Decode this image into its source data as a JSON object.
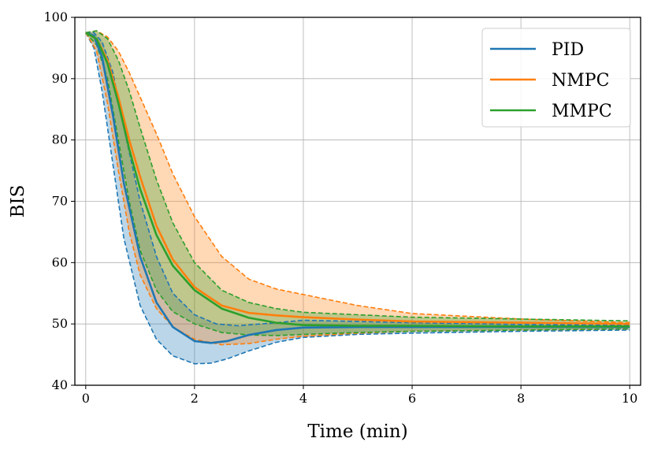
{
  "chart_data": {
    "type": "line",
    "xlabel": "Time (min)",
    "ylabel": "BIS",
    "xlim": [
      -0.2,
      10.2
    ],
    "ylim": [
      40,
      100
    ],
    "xticks": [
      0,
      2,
      4,
      6,
      8,
      10
    ],
    "yticks": [
      40,
      50,
      60,
      70,
      80,
      90,
      100
    ],
    "grid": true,
    "legend_position": "top-right",
    "series": [
      {
        "name": "PID",
        "color": "#1f77b4",
        "mean": [
          [
            0,
            97.5
          ],
          [
            0.15,
            97.0
          ],
          [
            0.3,
            93.5
          ],
          [
            0.5,
            84.0
          ],
          [
            0.7,
            73.0
          ],
          [
            1.0,
            61.0
          ],
          [
            1.3,
            53.5
          ],
          [
            1.6,
            49.5
          ],
          [
            2.0,
            47.2
          ],
          [
            2.3,
            46.9
          ],
          [
            2.6,
            47.2
          ],
          [
            3.0,
            48.2
          ],
          [
            3.5,
            49.0
          ],
          [
            4.0,
            49.4
          ],
          [
            5.0,
            49.5
          ],
          [
            6.0,
            49.5
          ],
          [
            8.0,
            49.5
          ],
          [
            10.0,
            49.5
          ]
        ],
        "upper": [
          [
            0,
            97.5
          ],
          [
            0.15,
            97.5
          ],
          [
            0.3,
            96.0
          ],
          [
            0.5,
            91.0
          ],
          [
            0.7,
            82.0
          ],
          [
            1.0,
            70.0
          ],
          [
            1.3,
            61.0
          ],
          [
            1.6,
            55.0
          ],
          [
            2.0,
            51.5
          ],
          [
            2.4,
            50.0
          ],
          [
            2.8,
            49.7
          ],
          [
            3.5,
            50.2
          ],
          [
            4.0,
            50.6
          ],
          [
            5.0,
            50.4
          ],
          [
            6.0,
            50.2
          ],
          [
            8.0,
            49.9
          ],
          [
            10.0,
            49.8
          ]
        ],
        "lower": [
          [
            0,
            97.5
          ],
          [
            0.15,
            95.0
          ],
          [
            0.3,
            88.0
          ],
          [
            0.5,
            76.0
          ],
          [
            0.7,
            64.0
          ],
          [
            1.0,
            53.0
          ],
          [
            1.3,
            47.5
          ],
          [
            1.6,
            44.8
          ],
          [
            2.0,
            43.5
          ],
          [
            2.3,
            43.6
          ],
          [
            2.6,
            44.3
          ],
          [
            3.0,
            45.6
          ],
          [
            3.5,
            47.0
          ],
          [
            4.0,
            47.8
          ],
          [
            5.0,
            48.3
          ],
          [
            6.0,
            48.5
          ],
          [
            8.0,
            48.8
          ],
          [
            10.0,
            49.0
          ]
        ]
      },
      {
        "name": "NMPC",
        "color": "#ff7f0e",
        "mean": [
          [
            0,
            97.5
          ],
          [
            0.2,
            96.5
          ],
          [
            0.4,
            93.0
          ],
          [
            0.6,
            87.0
          ],
          [
            0.8,
            80.0
          ],
          [
            1.0,
            74.0
          ],
          [
            1.3,
            66.0
          ],
          [
            1.6,
            60.5
          ],
          [
            2.0,
            56.0
          ],
          [
            2.5,
            53.0
          ],
          [
            3.0,
            51.8
          ],
          [
            3.5,
            51.4
          ],
          [
            4.0,
            51.1
          ],
          [
            5.0,
            50.7
          ],
          [
            6.0,
            50.4
          ],
          [
            8.0,
            50.2
          ],
          [
            10.0,
            50.0
          ]
        ],
        "upper": [
          [
            0,
            97.5
          ],
          [
            0.2,
            97.8
          ],
          [
            0.4,
            96.8
          ],
          [
            0.6,
            94.5
          ],
          [
            0.8,
            91.0
          ],
          [
            1.0,
            87.0
          ],
          [
            1.3,
            81.0
          ],
          [
            1.6,
            74.5
          ],
          [
            2.0,
            67.5
          ],
          [
            2.5,
            61.0
          ],
          [
            3.0,
            57.3
          ],
          [
            3.5,
            55.7
          ],
          [
            4.0,
            54.8
          ],
          [
            5.0,
            53.0
          ],
          [
            6.0,
            51.7
          ],
          [
            8.0,
            50.8
          ],
          [
            10.0,
            50.2
          ]
        ],
        "lower": [
          [
            0,
            97.5
          ],
          [
            0.2,
            94.5
          ],
          [
            0.4,
            86.0
          ],
          [
            0.6,
            75.0
          ],
          [
            0.8,
            65.0
          ],
          [
            1.0,
            58.0
          ],
          [
            1.3,
            52.5
          ],
          [
            1.6,
            49.5
          ],
          [
            2.0,
            47.5
          ],
          [
            2.5,
            46.6
          ],
          [
            3.0,
            46.8
          ],
          [
            3.5,
            47.5
          ],
          [
            4.0,
            48.0
          ],
          [
            5.0,
            48.5
          ],
          [
            6.0,
            48.8
          ],
          [
            8.0,
            49.0
          ],
          [
            10.0,
            49.2
          ]
        ]
      },
      {
        "name": "MMPC",
        "color": "#2ca02c",
        "mean": [
          [
            0,
            97.5
          ],
          [
            0.2,
            96.5
          ],
          [
            0.4,
            92.5
          ],
          [
            0.6,
            86.0
          ],
          [
            0.8,
            78.5
          ],
          [
            1.0,
            72.0
          ],
          [
            1.3,
            64.5
          ],
          [
            1.6,
            59.5
          ],
          [
            2.0,
            55.5
          ],
          [
            2.5,
            52.5
          ],
          [
            3.0,
            51.0
          ],
          [
            3.5,
            50.2
          ],
          [
            4.0,
            49.8
          ],
          [
            5.0,
            49.7
          ],
          [
            6.0,
            49.7
          ],
          [
            8.0,
            49.6
          ],
          [
            10.0,
            49.6
          ]
        ],
        "upper": [
          [
            0,
            97.5
          ],
          [
            0.2,
            97.8
          ],
          [
            0.4,
            96.5
          ],
          [
            0.6,
            93.0
          ],
          [
            0.8,
            88.0
          ],
          [
            1.0,
            82.0
          ],
          [
            1.3,
            73.5
          ],
          [
            1.6,
            66.5
          ],
          [
            2.0,
            60.0
          ],
          [
            2.5,
            55.5
          ],
          [
            3.0,
            53.5
          ],
          [
            3.5,
            52.5
          ],
          [
            4.0,
            51.9
          ],
          [
            5.0,
            51.5
          ],
          [
            6.0,
            51.1
          ],
          [
            8.0,
            50.8
          ],
          [
            10.0,
            50.5
          ]
        ],
        "lower": [
          [
            0,
            97.5
          ],
          [
            0.2,
            95.5
          ],
          [
            0.4,
            90.0
          ],
          [
            0.6,
            80.0
          ],
          [
            0.8,
            70.0
          ],
          [
            1.0,
            62.0
          ],
          [
            1.3,
            55.5
          ],
          [
            1.6,
            52.0
          ],
          [
            2.0,
            50.0
          ],
          [
            2.5,
            48.6
          ],
          [
            3.0,
            48.2
          ],
          [
            3.5,
            48.1
          ],
          [
            4.0,
            48.3
          ],
          [
            5.0,
            48.6
          ],
          [
            6.0,
            48.8
          ],
          [
            8.0,
            49.0
          ],
          [
            10.0,
            49.2
          ]
        ]
      }
    ]
  }
}
